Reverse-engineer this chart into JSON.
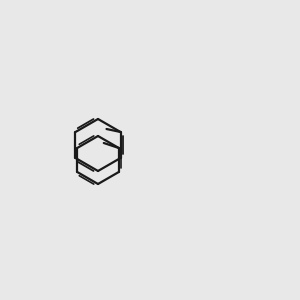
{
  "bg_color": "#e8e8e8",
  "bond_color": "#1a1a1a",
  "o_color": "#cc0000",
  "n_color": "#0000cc",
  "lw": 1.5,
  "lw_double": 1.3
}
